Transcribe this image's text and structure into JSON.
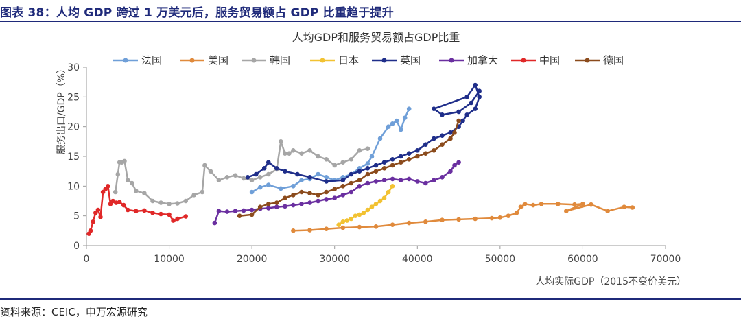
{
  "header": {
    "title": "图表 38：人均 GDP 跨过 1 万美元后，服务贸易额占 GDP 比重趋于提升"
  },
  "footer": {
    "source": "资料来源：CEIC，申万宏源研究"
  },
  "chart_data": {
    "type": "line",
    "title": "人均GDP和服务贸易额占GDP比重",
    "xlabel": "人均实际GDP（2015不变价美元）",
    "ylabel": "服务出口/GDP（%）",
    "xlim": [
      0,
      70000
    ],
    "ylim": [
      0,
      30
    ],
    "xticks": [
      0,
      10000,
      20000,
      30000,
      40000,
      50000,
      60000,
      70000
    ],
    "yticks": [
      0,
      5,
      10,
      15,
      20,
      25,
      30
    ],
    "grid": false,
    "legend_position": "top",
    "series": [
      {
        "name": "法国",
        "color": "#6f9fd8",
        "x": [
          20000,
          21000,
          22000,
          23500,
          25000,
          26000,
          27000,
          28000,
          29000,
          30000,
          31000,
          32000,
          33000,
          34000,
          34500,
          35500,
          36500,
          37000,
          37500,
          38000,
          38500,
          39000
        ],
        "y": [
          9.0,
          9.8,
          10.2,
          9.6,
          10.0,
          11.0,
          11.2,
          12.0,
          11.5,
          11.0,
          11.5,
          12.0,
          13.0,
          13.8,
          15.0,
          18.0,
          20.0,
          20.5,
          21.0,
          19.5,
          21.5,
          23.0
        ]
      },
      {
        "name": "美国",
        "color": "#e08a3c",
        "x": [
          25000,
          27000,
          29000,
          31000,
          33000,
          35000,
          37000,
          39000,
          41000,
          43000,
          45000,
          47000,
          49000,
          50000,
          51000,
          52000,
          52500,
          53000,
          54000,
          55000,
          57000,
          59000,
          60000,
          58000,
          61000,
          63000,
          65000,
          66000
        ],
        "y": [
          2.5,
          2.6,
          2.8,
          3.0,
          3.1,
          3.2,
          3.5,
          3.8,
          4.0,
          4.3,
          4.4,
          4.5,
          4.6,
          4.7,
          5.0,
          5.5,
          6.5,
          7.0,
          6.8,
          7.0,
          7.0,
          6.9,
          7.0,
          5.8,
          6.9,
          5.8,
          6.5,
          6.4
        ]
      },
      {
        "name": "韩国",
        "color": "#a6a6a6",
        "x": [
          3500,
          3800,
          4000,
          4300,
          4600,
          5000,
          5500,
          6000,
          7000,
          8000,
          9000,
          10000,
          11000,
          12000,
          13000,
          14000,
          14300,
          15000,
          16000,
          17000,
          18000,
          19000,
          20000,
          21000,
          22000,
          23000,
          23500,
          24000,
          24500,
          25000,
          26000,
          27000,
          28000,
          29000,
          30000,
          31000,
          32000,
          33000,
          34000
        ],
        "y": [
          9.0,
          12.0,
          14.0,
          14.0,
          14.2,
          11.0,
          10.5,
          9.2,
          8.8,
          7.5,
          7.2,
          7.0,
          7.1,
          7.5,
          8.5,
          9.0,
          13.5,
          12.5,
          11.0,
          11.5,
          11.8,
          11.3,
          11.0,
          11.5,
          12.0,
          12.8,
          17.5,
          15.5,
          15.5,
          16.0,
          15.5,
          16.0,
          15.0,
          14.5,
          13.5,
          14.0,
          14.5,
          16.0,
          16.3
        ]
      },
      {
        "name": "日本",
        "color": "#f2c232",
        "x": [
          30500,
          31000,
          31500,
          32000,
          32500,
          33000,
          33500,
          34000,
          34500,
          35000,
          35500,
          36000,
          36500,
          37000
        ],
        "y": [
          3.5,
          4.0,
          4.2,
          4.5,
          5.0,
          5.2,
          5.5,
          6.0,
          6.5,
          7.0,
          7.5,
          8.0,
          9.0,
          10.0
        ]
      },
      {
        "name": "英国",
        "color": "#1f2e8a",
        "x": [
          19500,
          20500,
          21500,
          22000,
          23000,
          24000,
          25500,
          27000,
          29000,
          31000,
          32000,
          33000,
          34000,
          35000,
          36000,
          37000,
          38000,
          39000,
          40000,
          41000,
          42000,
          43000,
          44000,
          45000,
          45500,
          46000,
          47000,
          47500,
          47000,
          46000,
          42000,
          43000,
          45000,
          46500,
          47500
        ],
        "y": [
          11.5,
          12.0,
          13.0,
          14.0,
          13.0,
          12.5,
          12.0,
          11.5,
          10.8,
          11.0,
          12.0,
          12.5,
          13.0,
          13.5,
          14.0,
          14.5,
          15.0,
          15.5,
          16.0,
          17.0,
          18.0,
          18.5,
          19.0,
          20.0,
          21.0,
          22.0,
          23.0,
          25.0,
          27.0,
          25.0,
          23.0,
          22.0,
          22.5,
          24.0,
          26.0
        ]
      },
      {
        "name": "加拿大",
        "color": "#6a2fa0",
        "x": [
          15500,
          16000,
          17000,
          18000,
          19000,
          20000,
          21000,
          22000,
          23000,
          24000,
          25000,
          26000,
          27000,
          28000,
          29000,
          30000,
          31000,
          32000,
          33000,
          34000,
          35000,
          36000,
          37000,
          38000,
          39000,
          40000,
          41000,
          42000,
          43000,
          44000,
          44500,
          45000
        ],
        "y": [
          3.8,
          5.8,
          5.7,
          5.8,
          5.9,
          6.0,
          6.2,
          6.3,
          6.5,
          6.6,
          6.8,
          7.0,
          7.2,
          7.5,
          7.8,
          8.0,
          8.5,
          9.0,
          10.0,
          10.5,
          10.8,
          11.0,
          11.2,
          11.0,
          11.2,
          10.8,
          10.5,
          11.0,
          11.5,
          12.5,
          13.5,
          14.0
        ]
      },
      {
        "name": "中国",
        "color": "#e02828",
        "x": [
          300,
          500,
          800,
          1100,
          1400,
          1700,
          2000,
          2300,
          2600,
          2900,
          3200,
          3600,
          4000,
          4500,
          5000,
          6000,
          7000,
          8000,
          9000,
          10000,
          10500,
          11000,
          12000
        ],
        "y": [
          2.0,
          2.5,
          4.0,
          5.5,
          6.0,
          4.8,
          9.0,
          9.5,
          10.0,
          7.0,
          7.5,
          7.2,
          7.3,
          6.8,
          6.0,
          5.8,
          5.9,
          5.5,
          5.3,
          5.2,
          4.2,
          4.5,
          4.9
        ]
      },
      {
        "name": "德国",
        "color": "#8b4b1c",
        "x": [
          18500,
          20000,
          21000,
          22000,
          23000,
          24000,
          25000,
          26000,
          27000,
          28000,
          29000,
          30000,
          31000,
          32000,
          33000,
          34000,
          35000,
          36000,
          37000,
          38000,
          39000,
          40000,
          41000,
          42000,
          43000,
          44000,
          44500,
          45000
        ],
        "y": [
          5.0,
          5.2,
          6.5,
          7.0,
          7.2,
          8.0,
          8.5,
          9.0,
          8.8,
          8.5,
          9.0,
          9.5,
          10.0,
          10.5,
          11.0,
          12.0,
          12.5,
          13.0,
          13.5,
          14.0,
          14.5,
          15.0,
          15.5,
          16.0,
          17.0,
          18.0,
          19.0,
          21.0
        ]
      }
    ]
  }
}
